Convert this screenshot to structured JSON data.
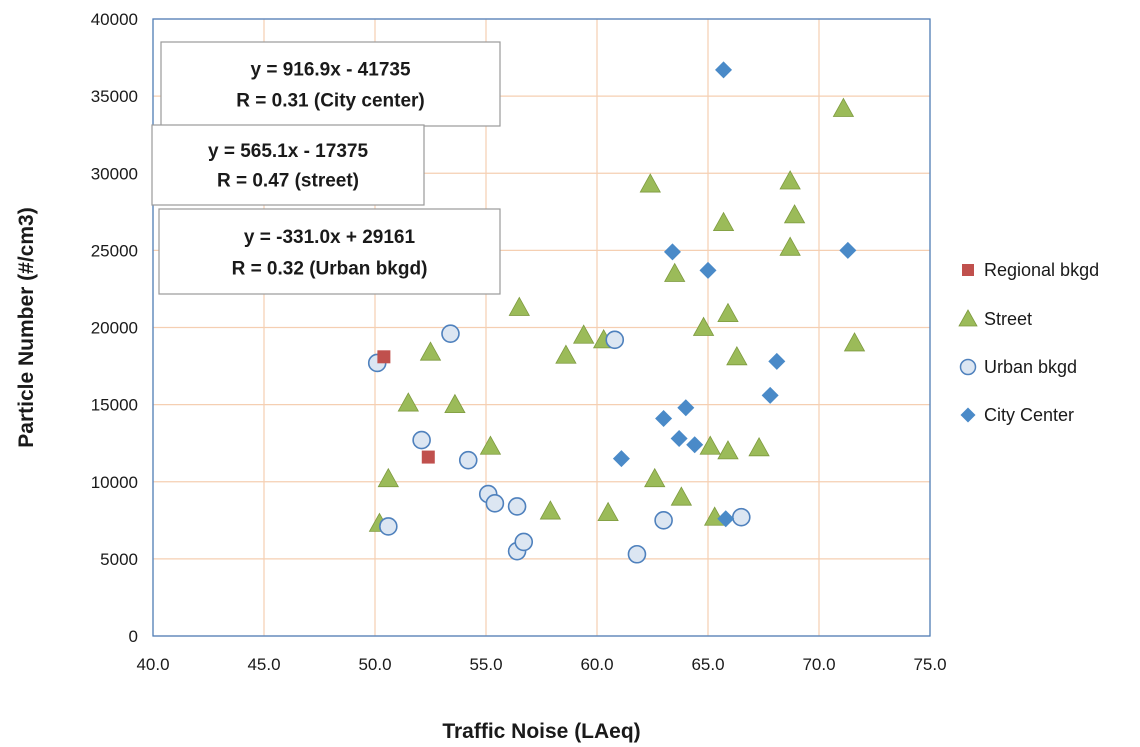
{
  "chart_data": {
    "type": "scatter",
    "xlabel": "Traffic Noise (LAeq)",
    "ylabel": "Particle Number (#/cm3)",
    "xlim": [
      40,
      75
    ],
    "ylim": [
      0,
      40000
    ],
    "x_ticks": [
      "40.0",
      "45.0",
      "50.0",
      "55.0",
      "60.0",
      "65.0",
      "70.0",
      "75.0"
    ],
    "y_ticks": [
      "0",
      "5000",
      "10000",
      "15000",
      "20000",
      "25000",
      "30000",
      "35000",
      "40000"
    ],
    "grid": true,
    "legend_position": "right",
    "colors": {
      "regional": "#c0504d",
      "street": "#9bbb59",
      "street_stroke": "#7e9a3f",
      "urban_fill": "#dce6f2",
      "urban_stroke": "#4f81bd",
      "city": "#4a8ac8",
      "grid": "#f5cfb2",
      "plot_border": "#4f81bd"
    },
    "series": [
      {
        "name": "Regional bkgd",
        "marker": "square",
        "points": [
          [
            50.4,
            18100
          ],
          [
            52.4,
            11600
          ]
        ]
      },
      {
        "name": "Street",
        "marker": "triangle",
        "points": [
          [
            50.2,
            7300
          ],
          [
            50.6,
            10200
          ],
          [
            51.5,
            15100
          ],
          [
            52.5,
            18400
          ],
          [
            53.6,
            15000
          ],
          [
            55.2,
            12300
          ],
          [
            56.5,
            21300
          ],
          [
            57.9,
            8100
          ],
          [
            58.6,
            18200
          ],
          [
            59.4,
            19500
          ],
          [
            60.3,
            19200
          ],
          [
            60.5,
            8000
          ],
          [
            62.4,
            29300
          ],
          [
            62.6,
            10200
          ],
          [
            63.5,
            23500
          ],
          [
            63.8,
            9000
          ],
          [
            64.8,
            20000
          ],
          [
            65.1,
            12300
          ],
          [
            65.3,
            7700
          ],
          [
            65.7,
            26800
          ],
          [
            65.9,
            20900
          ],
          [
            65.9,
            12000
          ],
          [
            66.3,
            18100
          ],
          [
            67.3,
            12200
          ],
          [
            68.7,
            25200
          ],
          [
            68.7,
            29500
          ],
          [
            68.9,
            27300
          ],
          [
            71.1,
            34200
          ],
          [
            71.6,
            19000
          ]
        ]
      },
      {
        "name": "Urban bkgd",
        "marker": "circle",
        "points": [
          [
            50.1,
            17700
          ],
          [
            50.6,
            7100
          ],
          [
            52.1,
            12700
          ],
          [
            53.4,
            19600
          ],
          [
            54.2,
            11400
          ],
          [
            55.1,
            9200
          ],
          [
            55.4,
            8600
          ],
          [
            56.4,
            8400
          ],
          [
            56.4,
            5500
          ],
          [
            56.7,
            6100
          ],
          [
            60.8,
            19200
          ],
          [
            61.8,
            5300
          ],
          [
            63.0,
            7500
          ],
          [
            66.5,
            7700
          ]
        ]
      },
      {
        "name": "City Center",
        "marker": "diamond",
        "points": [
          [
            65.7,
            36700
          ],
          [
            63.4,
            24900
          ],
          [
            65.0,
            23700
          ],
          [
            71.3,
            25000
          ],
          [
            68.1,
            17800
          ],
          [
            67.8,
            15600
          ],
          [
            63.0,
            14100
          ],
          [
            64.0,
            14800
          ],
          [
            63.7,
            12800
          ],
          [
            64.4,
            12400
          ],
          [
            61.1,
            11500
          ],
          [
            65.8,
            7600
          ]
        ]
      }
    ],
    "annotations": [
      {
        "line1": "y = 916.9x  - 41735",
        "line2": "R = 0.31  (City center)"
      },
      {
        "line1": "y = 565.1x  - 17375",
        "line2": "R = 0.47  (street)"
      },
      {
        "line1": "y = -331.0x + 29161",
        "line2": "R = 0.32  (Urban  bkgd)"
      }
    ]
  }
}
